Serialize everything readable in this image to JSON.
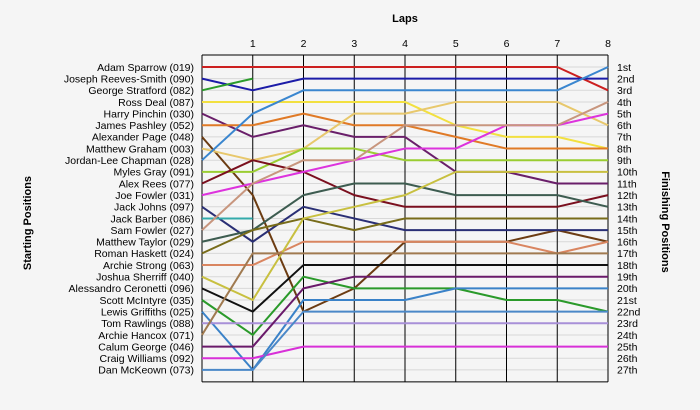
{
  "chart_data": {
    "type": "line",
    "title": "Laps",
    "ylabel_left": "Starting Positions",
    "ylabel_right": "Finishing Positions",
    "x": [
      1,
      2,
      3,
      4,
      5,
      6,
      7,
      8
    ],
    "position_labels": [
      "1st",
      "2nd",
      "3rd",
      "4th",
      "5th",
      "6th",
      "7th",
      "8th",
      "9th",
      "10th",
      "11th",
      "12th",
      "13th",
      "14th",
      "15th",
      "16th",
      "17th",
      "18th",
      "19th",
      "20th",
      "21st",
      "22nd",
      "23rd",
      "24th",
      "25th",
      "26th",
      "27th"
    ],
    "grid": true,
    "series": [
      {
        "name": "Adam Sparrow (019)",
        "color": "#cc1f1f",
        "positions": [
          1,
          1,
          1,
          1,
          1,
          1,
          1,
          1,
          3
        ]
      },
      {
        "name": "Joseph Reeves-Smith (090)",
        "color": "#1c1ca8",
        "positions": [
          2,
          3,
          2,
          2,
          2,
          2,
          2,
          2,
          2
        ]
      },
      {
        "name": "George Stratford (082)",
        "color": "#2c9c2c",
        "positions": [
          3,
          2
        ]
      },
      {
        "name": "Ross Deal (087)",
        "color": "#f2e040",
        "positions": [
          4,
          4,
          4,
          4,
          4,
          6,
          7,
          7,
          8
        ]
      },
      {
        "name": "Harry Pinchin (030)",
        "color": "#6a1f6a",
        "positions": [
          5,
          7,
          6,
          7,
          7,
          10,
          10,
          11,
          11
        ]
      },
      {
        "name": "James Pashley (052)",
        "color": "#e07a26",
        "positions": [
          6,
          6,
          5,
          6,
          6,
          7,
          8,
          8,
          8
        ]
      },
      {
        "name": "Alexander Page (048)",
        "color": "#6c3c12",
        "positions": [
          7,
          12,
          22,
          20,
          16,
          16,
          16,
          15,
          16
        ]
      },
      {
        "name": "Matthew Graham (003)",
        "color": "#e8c86c",
        "positions": [
          8,
          9,
          8,
          5,
          5,
          4,
          4,
          4,
          6
        ]
      },
      {
        "name": "Jordan-Lee Chapman (028)",
        "color": "#3a86cf",
        "positions": [
          9,
          5,
          3,
          3,
          3,
          3,
          3,
          3,
          1
        ]
      },
      {
        "name": "Myles Gray (091)",
        "color": "#9acd32",
        "positions": [
          10,
          10,
          8,
          8,
          9,
          9,
          9,
          9,
          9
        ]
      },
      {
        "name": "Alex Rees (077)",
        "color": "#7a0f1e",
        "positions": [
          11,
          9,
          10,
          12,
          13,
          13,
          13,
          13,
          12
        ]
      },
      {
        "name": "Joe Fowler (031)",
        "color": "#dd33dd",
        "positions": [
          12,
          11,
          10,
          9,
          8,
          8,
          6,
          6,
          5
        ]
      },
      {
        "name": "Jack Johns (097)",
        "color": "#2a2f75",
        "positions": [
          13,
          16,
          13,
          14,
          15,
          15,
          15,
          15,
          15
        ]
      },
      {
        "name": "Jack Barber (086)",
        "color": "#33aaaa",
        "positions": [
          14,
          14
        ]
      },
      {
        "name": "Sam Fowler (027)",
        "color": "#c8967e",
        "positions": [
          15,
          11,
          9,
          9,
          6,
          6,
          6,
          6,
          4
        ]
      },
      {
        "name": "Matthew Taylor (029)",
        "color": "#3d5c50",
        "positions": [
          16,
          15,
          12,
          11,
          11,
          12,
          12,
          12,
          13
        ]
      },
      {
        "name": "Roman Haskett (024)",
        "color": "#786c1a",
        "positions": [
          17,
          15,
          14,
          15,
          14,
          14,
          14,
          14,
          14
        ]
      },
      {
        "name": "Archie Strong (063)",
        "color": "#d98560",
        "positions": [
          18,
          18,
          16,
          16,
          16,
          16,
          16,
          17,
          16
        ]
      },
      {
        "name": "Joshua Sherriff (040)",
        "color": "#c8c040",
        "positions": [
          19,
          21,
          14,
          13,
          12,
          10,
          10,
          10,
          10
        ]
      },
      {
        "name": "Alessandro Ceronetti (096)",
        "color": "#111111",
        "positions": [
          20,
          22,
          18,
          18,
          18,
          18,
          18,
          18,
          18
        ]
      },
      {
        "name": "Scott McIntyre (035)",
        "color": "#2a9a2a",
        "positions": [
          21,
          24,
          19,
          20,
          20,
          20,
          21,
          21,
          22
        ]
      },
      {
        "name": "Lewis Griffiths (025)",
        "color": "#3a82c8",
        "positions": [
          22,
          27,
          21,
          21,
          21,
          20,
          20,
          20,
          20
        ]
      },
      {
        "name": "Tom Rawlings (088)",
        "color": "#a890d8",
        "positions": [
          23,
          23,
          23,
          23,
          23,
          23,
          23,
          23,
          23
        ]
      },
      {
        "name": "Archie Hancox (071)",
        "color": "#a07a50",
        "positions": [
          24,
          17,
          17,
          17,
          17,
          17,
          17,
          17,
          17
        ]
      },
      {
        "name": "Calum George (046)",
        "color": "#6a1a6a",
        "positions": [
          25,
          25,
          20,
          19,
          19,
          19,
          19,
          19,
          19
        ]
      },
      {
        "name": "Craig Williams (092)",
        "color": "#d830d8",
        "positions": [
          26,
          26,
          25,
          25,
          25,
          25,
          25,
          25,
          25
        ]
      },
      {
        "name": "Dan McKeown (073)",
        "color": "#4a88c8",
        "positions": [
          27,
          27,
          22,
          22,
          22,
          22,
          22,
          22,
          22
        ]
      }
    ]
  }
}
